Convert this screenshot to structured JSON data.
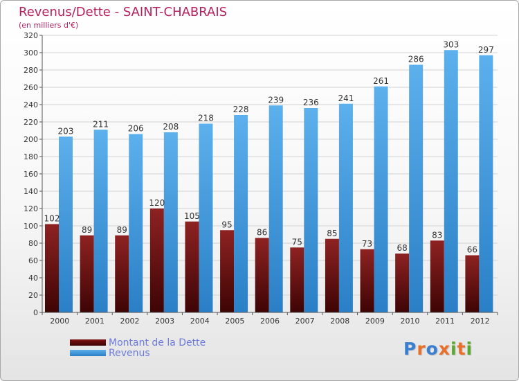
{
  "header": {
    "title": "Revenus/Dette - SAINT-CHABRAIS",
    "subtitle": "(en milliers d'€)"
  },
  "legend": {
    "items": [
      {
        "label": "Montant de la Dette",
        "color": "#7a1010"
      },
      {
        "label": "Revenus",
        "color": "#4a9fe0"
      }
    ]
  },
  "logo": {
    "letters": [
      {
        "char": "P",
        "color": "#3a7fd0"
      },
      {
        "char": "r",
        "color": "#e8702a"
      },
      {
        "char": "o",
        "color": "#3a7fd0"
      },
      {
        "char": "x",
        "color": "#e8702a"
      },
      {
        "char": "i",
        "color": "#5aa832"
      },
      {
        "char": "t",
        "color": "#e8702a"
      },
      {
        "char": "i",
        "color": "#5aa832"
      }
    ]
  },
  "chart_data": {
    "type": "bar",
    "title": "Revenus/Dette - SAINT-CHABRAIS",
    "ylabel": "(en milliers d'€)",
    "categories": [
      "2000",
      "2001",
      "2002",
      "2003",
      "2004",
      "2005",
      "2006",
      "2007",
      "2008",
      "2009",
      "2010",
      "2011",
      "2012"
    ],
    "series": [
      {
        "name": "Montant de la Dette",
        "color": "#7a1010",
        "values": [
          102,
          89,
          89,
          120,
          105,
          95,
          86,
          75,
          85,
          73,
          68,
          83,
          66
        ]
      },
      {
        "name": "Revenus",
        "color": "#4a9fe0",
        "values": [
          203,
          211,
          206,
          208,
          218,
          228,
          239,
          236,
          241,
          261,
          286,
          303,
          297
        ]
      }
    ],
    "ylim": [
      0,
      320
    ],
    "yticks": [
      0,
      20,
      40,
      60,
      80,
      100,
      120,
      140,
      160,
      180,
      200,
      220,
      240,
      260,
      280,
      300,
      320
    ],
    "grid": true,
    "legend": "bottom-left"
  }
}
